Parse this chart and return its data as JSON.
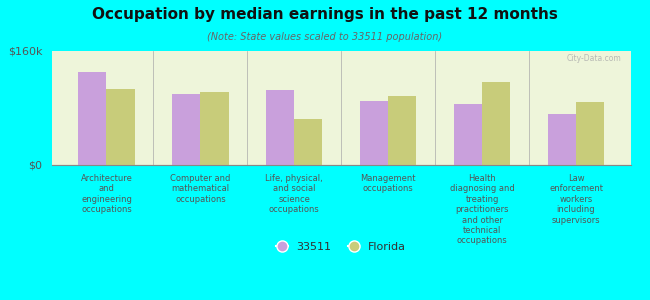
{
  "title": "Occupation by median earnings in the past 12 months",
  "subtitle": "(Note: State values scaled to 33511 population)",
  "categories": [
    "Architecture\nand\nengineering\noccupations",
    "Computer and\nmathematical\noccupations",
    "Life, physical,\nand social\nscience\noccupations",
    "Management\noccupations",
    "Health\ndiagnosing and\ntreating\npractitioners\nand other\ntechnical\noccupations",
    "Law\nenforcement\nworkers\nincluding\nsupervisors"
  ],
  "values_33511": [
    130000,
    100000,
    105000,
    90000,
    85000,
    72000
  ],
  "values_florida": [
    107000,
    102000,
    65000,
    97000,
    117000,
    88000
  ],
  "color_33511": "#c9a0dc",
  "color_florida": "#c8cc7a",
  "background_chart": "#eef5da",
  "background_outer": "#00ffff",
  "ylim": [
    0,
    160000
  ],
  "yticks": [
    0,
    160000
  ],
  "ytick_labels": [
    "$0",
    "$160k"
  ],
  "legend_label_33511": "33511",
  "legend_label_florida": "Florida",
  "watermark": "City-Data.com"
}
